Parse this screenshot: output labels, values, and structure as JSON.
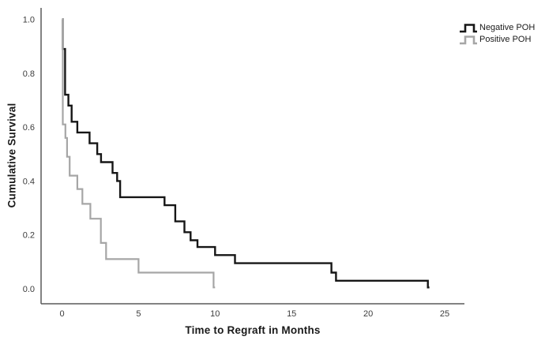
{
  "chart_data": {
    "type": "line",
    "subtype": "kaplan-meier-step",
    "title": "",
    "xlabel": "Time to Regraft in Months",
    "ylabel": "Cumulative Survival",
    "xlim": [
      -1.4,
      26.3
    ],
    "ylim": [
      0.0,
      1.0
    ],
    "x_ticks": [
      "0",
      "5",
      "10",
      "15",
      "20",
      "25"
    ],
    "x_tick_values": [
      0,
      5,
      10,
      15,
      20,
      25
    ],
    "y_ticks": [
      "0.0",
      "0.2",
      "0.4",
      "0.6",
      "0.8",
      "1.0"
    ],
    "y_tick_values": [
      0.0,
      0.2,
      0.4,
      0.6,
      0.8,
      1.0
    ],
    "grid": false,
    "legend_position": "top-right",
    "series": [
      {
        "name": "Negative POH",
        "color": "#161616",
        "end_t": 24.0,
        "points": [
          [
            0,
            1.0
          ],
          [
            0.05,
            0.89
          ],
          [
            0.2,
            0.72
          ],
          [
            0.42,
            0.68
          ],
          [
            0.63,
            0.62
          ],
          [
            1.0,
            0.58
          ],
          [
            1.8,
            0.54
          ],
          [
            2.3,
            0.5
          ],
          [
            2.55,
            0.47
          ],
          [
            3.3,
            0.43
          ],
          [
            3.6,
            0.4
          ],
          [
            3.8,
            0.34
          ],
          [
            6.7,
            0.31
          ],
          [
            7.4,
            0.25
          ],
          [
            8.0,
            0.21
          ],
          [
            8.4,
            0.18
          ],
          [
            8.85,
            0.155
          ],
          [
            10.0,
            0.125
          ],
          [
            11.3,
            0.095
          ],
          [
            17.6,
            0.06
          ],
          [
            17.9,
            0.03
          ],
          [
            23.9,
            0.005
          ]
        ]
      },
      {
        "name": "Positive POH",
        "color": "#a6a6a6",
        "end_t": 10.0,
        "points": [
          [
            0,
            1.0
          ],
          [
            0.05,
            0.61
          ],
          [
            0.22,
            0.56
          ],
          [
            0.33,
            0.49
          ],
          [
            0.5,
            0.42
          ],
          [
            1.0,
            0.37
          ],
          [
            1.33,
            0.315
          ],
          [
            1.85,
            0.26
          ],
          [
            2.54,
            0.17
          ],
          [
            2.88,
            0.11
          ],
          [
            5.0,
            0.06
          ],
          [
            9.9,
            0.005
          ]
        ]
      }
    ]
  },
  "colors": {
    "background": "#ffffff",
    "axis_line": "#5a5a5a",
    "tick_label": "#3c3c3c",
    "label_text": "#1a1a1a"
  }
}
